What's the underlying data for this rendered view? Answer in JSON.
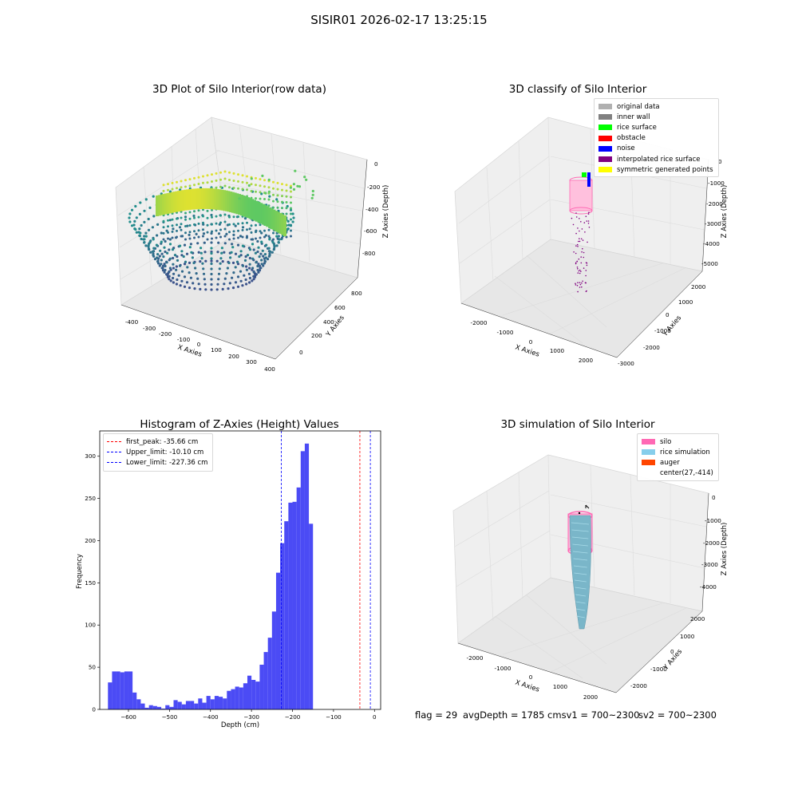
{
  "suptitle": "SISIR01 2026-02-17 13:25:15",
  "chart_data": [
    {
      "type": "scatter",
      "title": "3D Plot of Silo Interior(row data)",
      "xlabel": "X Axies",
      "ylabel": "Y Axies",
      "zlabel": "Z Axies (Depth)",
      "x_ticks": [
        "-400",
        "-300",
        "-200",
        "-100",
        "0",
        "100",
        "200",
        "300",
        "400"
      ],
      "y_ticks": [
        "0",
        "200",
        "400",
        "600",
        "800"
      ],
      "z_ticks": [
        "0",
        "-200",
        "-400",
        "-600",
        "-800"
      ],
      "colormap": "viridis"
    },
    {
      "type": "scatter",
      "title": "3D classify of Silo Interior",
      "xlabel": "X Axies",
      "ylabel": "Y Axies",
      "zlabel": "Z Axies (Depth)",
      "x_ticks": [
        "-2000",
        "-1000",
        "0",
        "1000",
        "2000"
      ],
      "y_ticks": [
        "-3000",
        "-2000",
        "-1000",
        "0",
        "1000",
        "2000"
      ],
      "z_ticks": [
        "0",
        "-1000",
        "-2000",
        "-3000",
        "-4000",
        "-5000"
      ],
      "legend": [
        {
          "label": "original data",
          "color": "#b0b0b0"
        },
        {
          "label": "inner wall",
          "color": "#808080"
        },
        {
          "label": "rice surface",
          "color": "#00ff00"
        },
        {
          "label": "obstacle",
          "color": "#ff0000"
        },
        {
          "label": "noise",
          "color": "#0000ff"
        },
        {
          "label": "interpolated rice surface",
          "color": "#800080"
        },
        {
          "label": "symmetric generated points",
          "color": "#ffff00"
        }
      ],
      "legend_position": "top-right"
    },
    {
      "type": "bar",
      "title": "Histogram of Z-Axies (Height) Values",
      "xlabel": "Depth (cm)",
      "ylabel": "Frequency",
      "bin_start": -650,
      "bin_width": 10,
      "values": [
        32,
        45,
        45,
        44,
        45,
        45,
        20,
        12,
        7,
        2,
        5,
        4,
        3,
        1,
        5,
        3,
        11,
        9,
        6,
        10,
        10,
        7,
        13,
        8,
        16,
        12,
        16,
        15,
        13,
        22,
        24,
        27,
        26,
        31,
        40,
        35,
        33,
        53,
        68,
        85,
        116,
        162,
        197,
        223,
        245,
        246,
        263,
        306,
        315,
        220
      ],
      "xlim": [
        -670,
        15
      ],
      "ylim": [
        0,
        330
      ],
      "x_ticks": [
        -600,
        -500,
        -400,
        -300,
        -200,
        -100,
        0
      ],
      "y_ticks": [
        0,
        50,
        100,
        150,
        200,
        250,
        300
      ],
      "bar_color": "#4b4bf5",
      "vlines": [
        {
          "label": "first_peak: -35.66 cm",
          "x": -35.66,
          "color": "#ff0000"
        },
        {
          "label": "Upper_limit: -10.10 cm",
          "x": -10.1,
          "color": "#0000ff"
        },
        {
          "label": "Lower_limit: -227.36 cm",
          "x": -227.36,
          "color": "#0000ff"
        }
      ],
      "legend_position": "top-left"
    },
    {
      "type": "scatter",
      "title": "3D simulation of Silo Interior",
      "xlabel": "X Axies",
      "ylabel": "Y Axies",
      "zlabel": "Z Axies (Depth)",
      "x_ticks": [
        "-2000",
        "-1000",
        "0",
        "1000",
        "2000"
      ],
      "y_ticks": [
        "-2000",
        "-1000",
        "0",
        "1000",
        "2000"
      ],
      "z_ticks": [
        "0",
        "-1000",
        "-2000",
        "-3000",
        "-4000"
      ],
      "legend": [
        {
          "label": "silo",
          "color": "#ff69b4"
        },
        {
          "label": "rice simulation",
          "color": "#87ceeb"
        },
        {
          "label": "auger",
          "color": "#ff4500"
        },
        {
          "label": "center(27,-414)",
          "color": ""
        }
      ],
      "legend_position": "top-right"
    }
  ],
  "footer": {
    "flag": "flag = 29",
    "avg": "avgDepth = 1785 cmsv1 = 700~2300",
    "sv2": "sv2 = 700~2300"
  }
}
